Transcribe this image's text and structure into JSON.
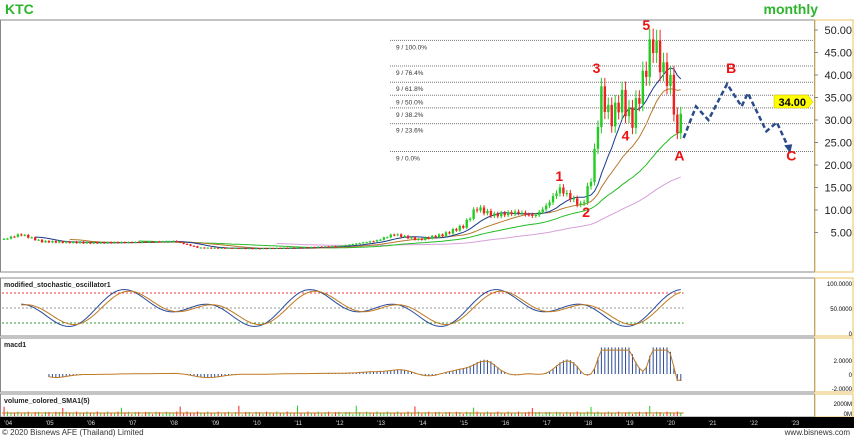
{
  "header": {
    "symbol": "KTC",
    "period": "monthly"
  },
  "footer": {
    "copyright": "© 2020 Bisnews AFE (Thailand) Limited",
    "site": "www.bisnews.com"
  },
  "colors": {
    "up": "#22cc22",
    "down": "#ee2222",
    "ma_fast": "#1a3a8a",
    "ma_mid": "#b87a30",
    "ma_slow": "#22bb22",
    "ma_long": "#d8a0d8",
    "forecast": "#2a4a8a",
    "wave_label": "#ee1111",
    "price_tag": "#ffff00"
  },
  "chart_data": [
    {
      "type": "candlestick",
      "title": "KTC",
      "ylim": [
        0,
        52
      ],
      "y_ticks": [
        "5.00",
        "10.00",
        "15.00",
        "20.00",
        "25.00",
        "30.00",
        "35.00",
        "40.00",
        "45.00",
        "50.00"
      ],
      "y_tick_values": [
        5,
        10,
        15,
        20,
        25,
        30,
        35,
        40,
        45,
        50
      ],
      "x_ticks": [
        "'04",
        "'05",
        "'06",
        "'07",
        "'08",
        "'09",
        "'10",
        "'11",
        "'12",
        "'13",
        "'14",
        "'15",
        "'16",
        "'17",
        "'18",
        "'19",
        "'20",
        "'21",
        "'22",
        "'23"
      ],
      "x_tick_values": [
        2004,
        2005,
        2006,
        2007,
        2008,
        2009,
        2010,
        2011,
        2012,
        2013,
        2014,
        2015,
        2016,
        2017,
        2018,
        2019,
        2020,
        2021,
        2022,
        2023
      ],
      "xlim": [
        2003.85,
        2023.4
      ],
      "last_price": "34.00",
      "last_price_value": 34,
      "close_keypoints": [
        [
          2003.9,
          3.5
        ],
        [
          2004.3,
          4.6
        ],
        [
          2004.8,
          3
        ],
        [
          2006,
          2.7
        ],
        [
          2007,
          2.8
        ],
        [
          2008,
          3.1
        ],
        [
          2008.6,
          1.6
        ],
        [
          2010,
          1.4
        ],
        [
          2011,
          1.6
        ],
        [
          2012,
          2
        ],
        [
          2012.9,
          3.2
        ],
        [
          2013.3,
          4.6
        ],
        [
          2013.9,
          3.4
        ],
        [
          2014.5,
          4.5
        ],
        [
          2015,
          6.5
        ],
        [
          2015.3,
          10.5
        ],
        [
          2015.7,
          8.8
        ],
        [
          2016.3,
          9.5
        ],
        [
          2016.7,
          8.6
        ],
        [
          2017,
          11
        ],
        [
          2017.3,
          14.8
        ],
        [
          2017.6,
          12.5
        ],
        [
          2017.85,
          10.8
        ],
        [
          2018.1,
          18
        ],
        [
          2018.3,
          36
        ],
        [
          2018.55,
          30
        ],
        [
          2018.8,
          35
        ],
        [
          2019.05,
          29.5
        ],
        [
          2019.3,
          38
        ],
        [
          2019.55,
          48
        ],
        [
          2019.8,
          41
        ],
        [
          2020.0,
          38
        ],
        [
          2020.15,
          26
        ],
        [
          2020.25,
          34
        ]
      ],
      "moving_averages": [
        10,
        20,
        40,
        80
      ],
      "fib_levels": [
        {
          "label": "9 / 100.0%",
          "price": 47.7
        },
        {
          "label": "9 / 76.4%",
          "price": 42
        },
        {
          "label": "9 / 61.8%",
          "price": 38.4
        },
        {
          "label": "9 / 50.0%",
          "price": 35.5
        },
        {
          "label": "9 / 38.2%",
          "price": 32.7
        },
        {
          "label": "9 / 23.6%",
          "price": 29.2
        },
        {
          "label": "9 / 0.0%",
          "price": 23
        }
      ],
      "wave_labels": [
        {
          "text": "1",
          "x": 2017.3,
          "price": 16.5
        },
        {
          "text": "2",
          "x": 2017.95,
          "price": 8.5
        },
        {
          "text": "3",
          "x": 2018.2,
          "price": 40.5
        },
        {
          "text": "4",
          "x": 2018.9,
          "price": 25.5
        },
        {
          "text": "5",
          "x": 2019.4,
          "price": 50
        },
        {
          "text": "A",
          "x": 2020.2,
          "price": 21
        },
        {
          "text": "B",
          "x": 2021.45,
          "price": 40.5
        },
        {
          "text": "C",
          "x": 2022.9,
          "price": 21
        }
      ],
      "forecast_path": [
        [
          2020.3,
          26
        ],
        [
          2020.6,
          33
        ],
        [
          2020.9,
          30
        ],
        [
          2021.35,
          38
        ],
        [
          2021.7,
          33
        ],
        [
          2021.85,
          36
        ],
        [
          2022.3,
          27.5
        ],
        [
          2022.55,
          29.5
        ],
        [
          2022.85,
          23.5
        ]
      ]
    },
    {
      "type": "line",
      "title": "modified_stochastic_oscillator1",
      "ylim": [
        0,
        100
      ],
      "y_ticks": [
        "0",
        "50.0000",
        "100.0000"
      ],
      "y_tick_values": [
        0,
        50,
        100
      ],
      "levels": [
        80,
        50,
        20
      ]
    },
    {
      "type": "bar",
      "title": "macd1",
      "ylim": [
        -2.5,
        4
      ],
      "y_ticks": [
        "-2.0000",
        "0",
        "2.0000"
      ],
      "y_tick_values": [
        -2,
        0,
        2
      ]
    },
    {
      "type": "bar",
      "title": "volume_colored_SMA1(5)",
      "y_ticks": [
        "0M",
        "2000M"
      ],
      "y_tick_values": [
        0,
        2000
      ]
    }
  ]
}
